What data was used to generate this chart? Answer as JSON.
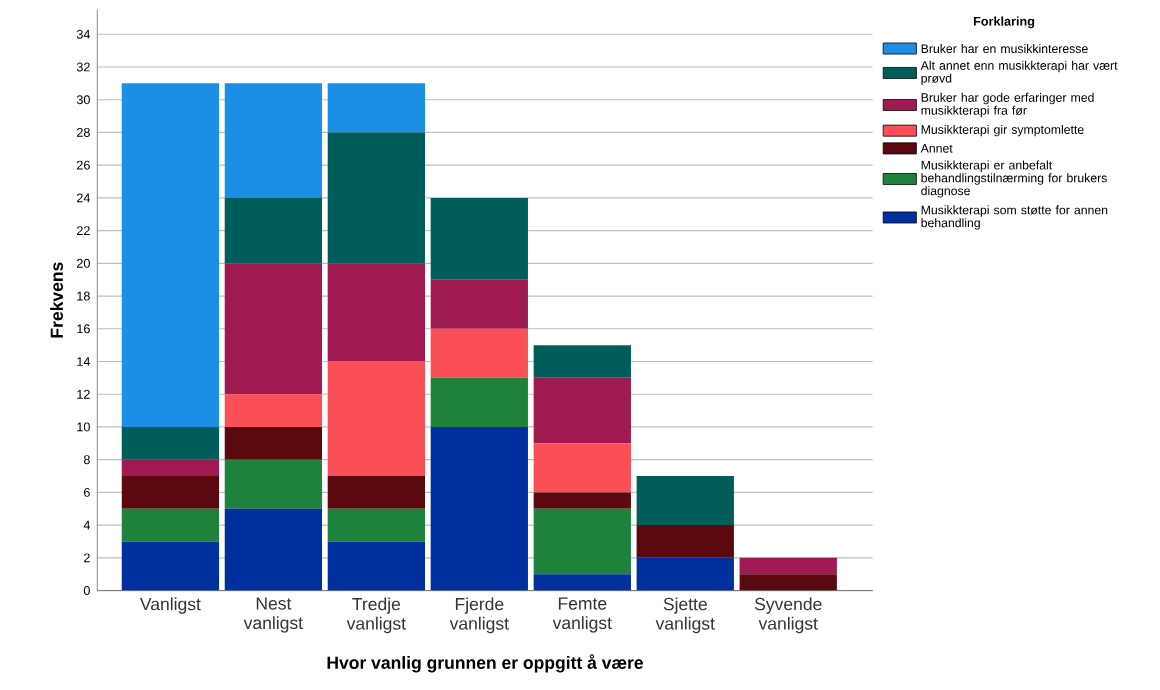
{
  "chart_data": {
    "type": "bar",
    "stacked": true,
    "xlabel": "Hvor vanlig grunnen er oppgitt å være",
    "ylabel": "Frekvens",
    "legend_title": "Forklaring",
    "categories": [
      "Vanligst",
      "Nest vanligst",
      "Tredje vanligst",
      "Fjerde vanligst",
      "Femte vanligst",
      "Sjette vanligst",
      "Syvende vanligst"
    ],
    "series": [
      {
        "name": "Musikkterapi som støtte for annen behandling",
        "color": "#00309e",
        "values": [
          3,
          5,
          3,
          10,
          1,
          2,
          0
        ]
      },
      {
        "name": "Musikkterapi er anbefalt behandlingstilnærming for brukers diagnose",
        "color": "#1e823c",
        "values": [
          2,
          3,
          2,
          3,
          4,
          0,
          0
        ]
      },
      {
        "name": "Annet",
        "color": "#5a0a0f",
        "values": [
          2,
          2,
          2,
          0,
          1,
          2,
          1
        ]
      },
      {
        "name": "Musikkterapi gir symptomlette",
        "color": "#fb4f57",
        "values": [
          0,
          2,
          7,
          3,
          3,
          0,
          0
        ]
      },
      {
        "name": "Bruker har gode erfaringer med musikkterapi fra før",
        "color": "#9e1a50",
        "values": [
          1,
          8,
          6,
          3,
          4,
          0,
          1
        ]
      },
      {
        "name": "Alt annet enn musikkterapi har vært prøvd",
        "color": "#005e5a",
        "values": [
          2,
          4,
          8,
          5,
          2,
          3,
          0
        ]
      },
      {
        "name": "Bruker har en musikkinteresse",
        "color": "#1b8fe6",
        "values": [
          21,
          7,
          3,
          0,
          0,
          0,
          0
        ]
      }
    ],
    "ylim": [
      0,
      35.5
    ],
    "yticks": [
      0,
      2,
      4,
      6,
      8,
      10,
      12,
      14,
      16,
      18,
      20,
      22,
      24,
      26,
      28,
      30,
      32,
      34
    ],
    "grid": "y",
    "legend": "top right"
  }
}
